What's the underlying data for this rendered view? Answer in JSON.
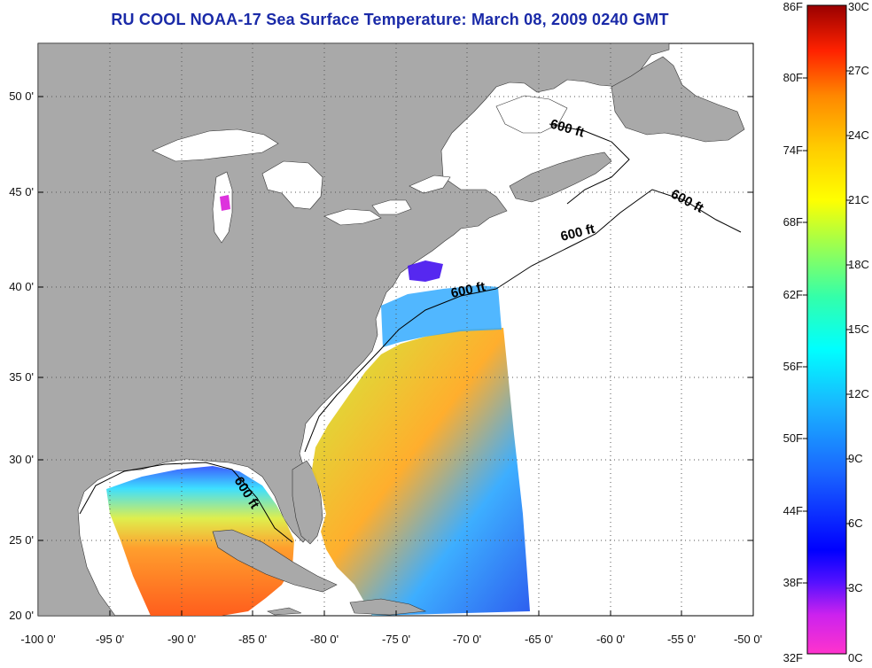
{
  "title": "RU COOL  NOAA-17  Sea Surface Temperature:  March 08, 2009 0240 GMT",
  "map": {
    "lat_labels": [
      "50 0'",
      "45 0'",
      "40 0'",
      "35 0'",
      "30 0'",
      "25 0'",
      "20 0'"
    ],
    "lon_labels": [
      "-100 0'",
      "-95 0'",
      "-90 0'",
      "-85 0'",
      "-80 0'",
      "-75 0'",
      "-70 0'",
      "-65 0'",
      "-60 0'",
      "-55 0'",
      "-50 0'"
    ],
    "lat_range": [
      20,
      52.5
    ],
    "lon_range": [
      -100,
      -50
    ],
    "grid": "dotted",
    "contour_labels": [
      "600 ft",
      "600 ft",
      "600 ft",
      "600 ft",
      "600 ft"
    ],
    "colors": {
      "land": "#a9a9a9",
      "no_data": "#ffffff"
    }
  },
  "colorbar": {
    "fahrenheit_labels": [
      "86F",
      "80F",
      "74F",
      "68F",
      "62F",
      "56F",
      "50F",
      "44F",
      "38F",
      "32F"
    ],
    "celsius_labels": [
      "30C",
      "27C",
      "24C",
      "21C",
      "18C",
      "15C",
      "12C",
      "9C",
      "6C",
      "3C",
      "0C"
    ],
    "range_c": [
      0,
      30
    ],
    "range_f": [
      32,
      86
    ]
  }
}
